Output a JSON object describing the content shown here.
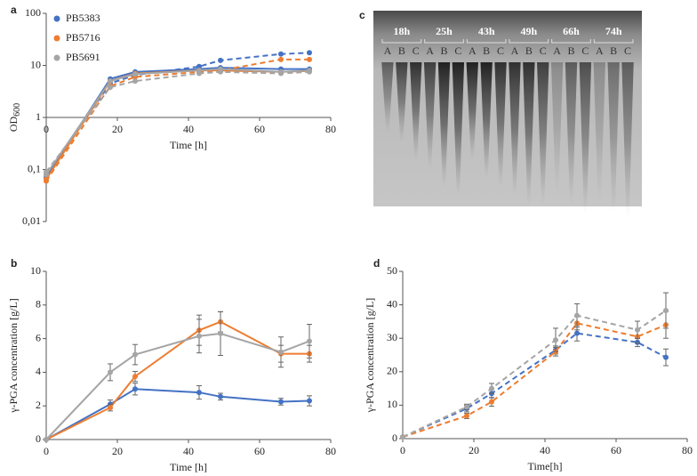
{
  "chart_data": [
    {
      "type": "line",
      "label": "a",
      "xlabel": "Time [h]",
      "ylabel": "OD",
      "ylabel_sub": "600",
      "log_y": true,
      "x_axis_at": 1,
      "legend": "upper left",
      "x": [
        0,
        18,
        25,
        43,
        49,
        66,
        74
      ],
      "xlim": [
        0,
        80
      ],
      "xticks": [
        0,
        20,
        40,
        60,
        80
      ],
      "ylim": [
        0.01,
        100
      ],
      "yticks": [
        {
          "value": 0.01,
          "label": "0,01"
        },
        {
          "value": 0.1,
          "label": "0,1"
        },
        1,
        10,
        100
      ],
      "series": [
        {
          "name": "PB5383",
          "color": "#4472c4",
          "values": [
            0.07,
            5.5,
            7.5,
            8.5,
            9,
            8.5,
            8.5
          ],
          "values_dashed": [
            0.08,
            4.5,
            6.5,
            9.5,
            12.5,
            16.5,
            17.5
          ]
        },
        {
          "name": "PB5716",
          "color": "#ed7d31",
          "values": [
            0.065,
            5,
            7,
            8,
            8,
            7.5,
            7.8
          ],
          "values_dashed": [
            0.06,
            4,
            6,
            7.5,
            8,
            13,
            13
          ]
        },
        {
          "name": "PB5691",
          "color": "#a5a5a5",
          "values": [
            0.08,
            5,
            6.8,
            8,
            8.5,
            7.5,
            8
          ],
          "values_dashed": [
            0.09,
            3.8,
            5,
            7,
            7.5,
            7,
            7.5
          ]
        }
      ]
    },
    {
      "type": "image",
      "label": "c",
      "lanes": [
        "18h",
        "25h",
        "43h",
        "49h",
        "66h",
        "74h"
      ],
      "lane_letters": [
        "A",
        "B",
        "C"
      ]
    },
    {
      "type": "line",
      "label": "b",
      "xlabel": "Time [h]",
      "ylabel": "γ-PGA concentration [g/L]",
      "x": [
        0,
        18,
        25,
        43,
        49,
        66,
        74
      ],
      "xlim": [
        0,
        80
      ],
      "xticks": [
        0,
        20,
        40,
        60,
        80
      ],
      "ylim": [
        0,
        10
      ],
      "yticks": [
        0,
        2,
        4,
        6,
        8,
        10
      ],
      "series": [
        {
          "color": "#4472c4",
          "values": [
            0,
            2.1,
            3.0,
            2.8,
            2.55,
            2.25,
            2.3
          ],
          "errors": [
            0,
            0.25,
            0.35,
            0.4,
            0.2,
            0.2,
            0.3
          ]
        },
        {
          "color": "#ed7d31",
          "values": [
            0,
            1.9,
            3.75,
            6.5,
            7.0,
            5.1,
            5.1
          ],
          "errors": [
            0,
            0.2,
            0.3,
            0.9,
            0.6,
            0.5,
            0.5
          ]
        },
        {
          "color": "#a5a5a5",
          "values": [
            0,
            4.0,
            5.05,
            6.15,
            6.3,
            5.2,
            5.85
          ],
          "errors": [
            0,
            0.5,
            0.6,
            1.0,
            1.3,
            0.9,
            1.0
          ]
        }
      ]
    },
    {
      "type": "line",
      "label": "d",
      "xlabel": "Time[h]",
      "ylabel": "γ-PGA concentration [g/L]",
      "dashed": true,
      "x": [
        0,
        18,
        25,
        43,
        49,
        66,
        74
      ],
      "xlim": [
        0,
        80
      ],
      "xticks": [
        0,
        20,
        40,
        60,
        80
      ],
      "ylim": [
        0,
        50
      ],
      "yticks": [
        0,
        10,
        20,
        30,
        40,
        50
      ],
      "series": [
        {
          "color": "#4472c4",
          "values": [
            0.5,
            9,
            13.5,
            26.5,
            31.5,
            28.8,
            24.3
          ],
          "errors": [
            0,
            1,
            1.3,
            1.2,
            2.3,
            1.3,
            2.5
          ]
        },
        {
          "color": "#ed7d31",
          "values": [
            0.5,
            6.8,
            11,
            26,
            34.5,
            30.5,
            34
          ],
          "errors": [
            0,
            0.8,
            1.3,
            1.3,
            2,
            2,
            4
          ]
        },
        {
          "color": "#a5a5a5",
          "values": [
            0.5,
            9.5,
            15,
            29.5,
            36.8,
            32.5,
            38.3
          ],
          "errors": [
            0,
            0.8,
            1.5,
            3.5,
            3.5,
            2.6,
            5.3
          ]
        }
      ]
    }
  ]
}
